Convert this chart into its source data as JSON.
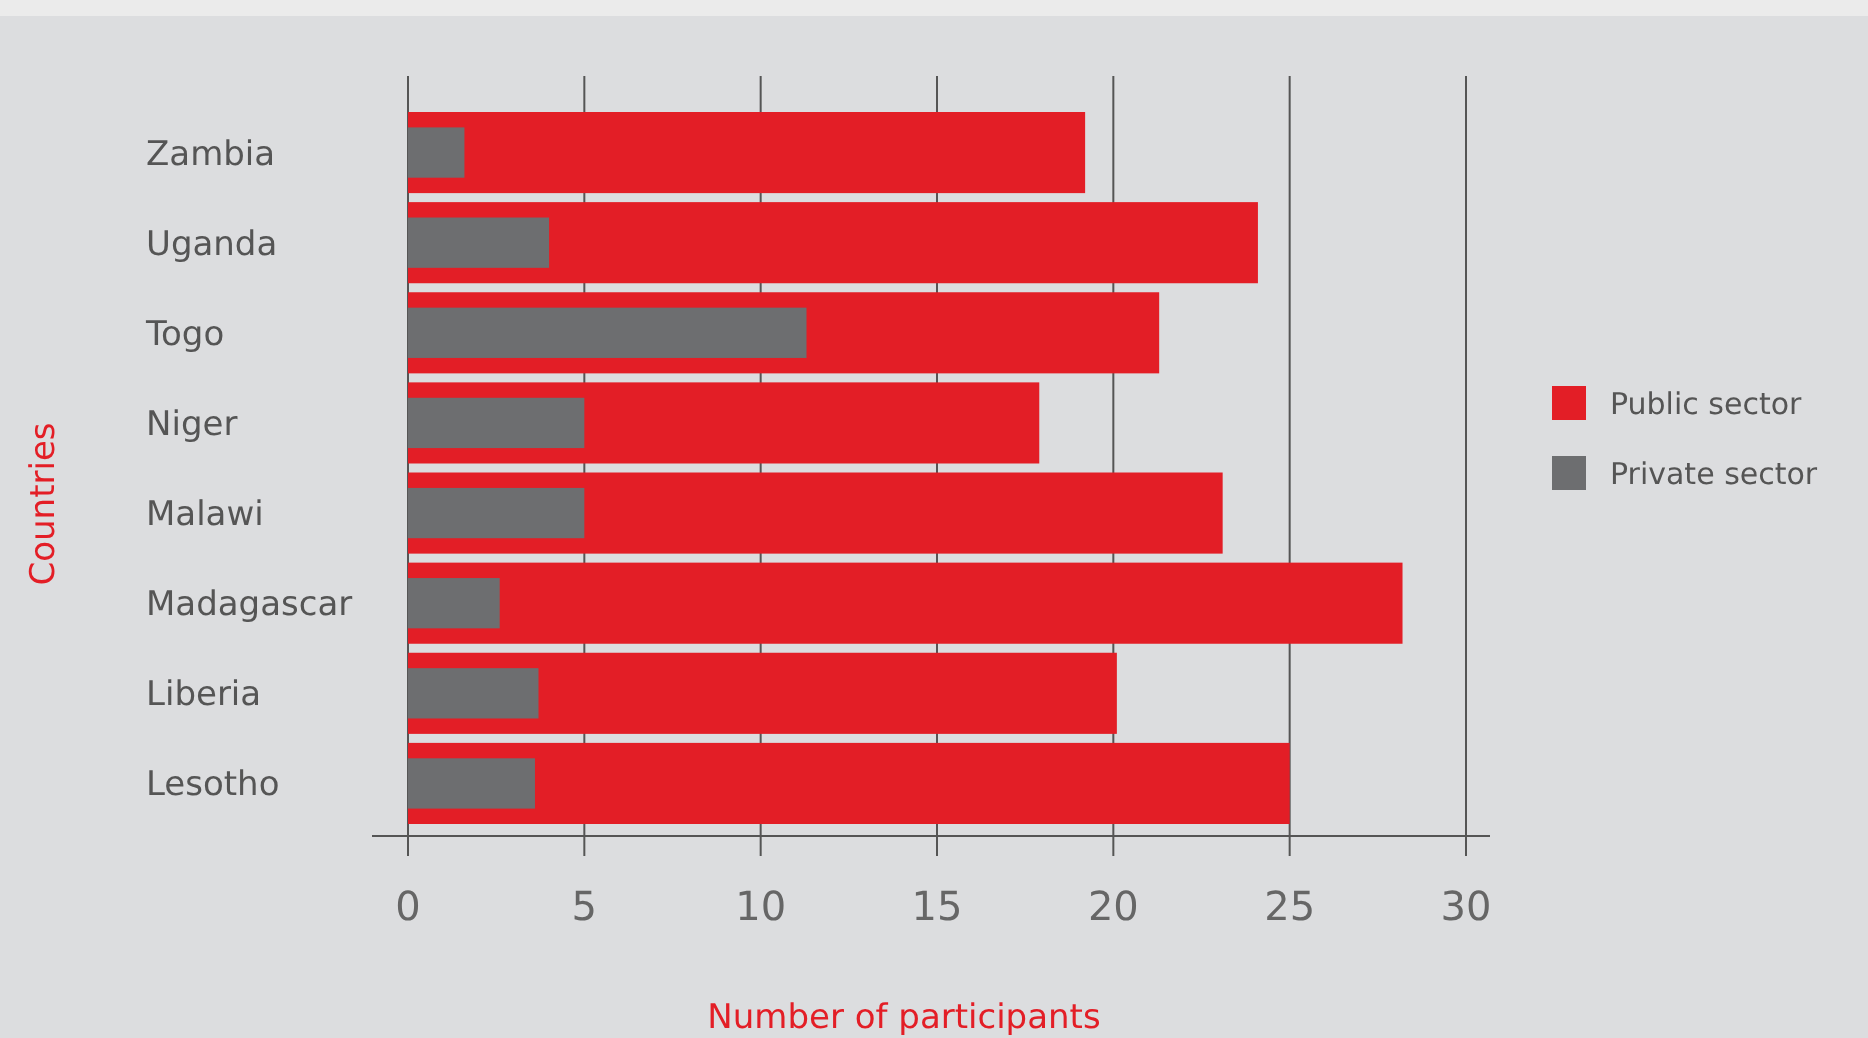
{
  "chart_data": {
    "type": "bar",
    "orientation": "horizontal",
    "xlabel": "Number of participants",
    "ylabel": "Countries",
    "categories": [
      "Zambia",
      "Uganda",
      "Togo",
      "Niger",
      "Malawi",
      "Madagascar",
      "Liberia",
      "Lesotho"
    ],
    "series": [
      {
        "name": "Public sector",
        "color": "#e31e26",
        "values": [
          19.2,
          24.1,
          21.3,
          17.9,
          23.1,
          28.2,
          20.1,
          25
        ]
      },
      {
        "name": "Private sector",
        "color": "#6d6e70",
        "values": [
          1.6,
          4,
          11.3,
          5,
          5,
          2.6,
          3.7,
          3.6
        ]
      }
    ],
    "xlim": [
      0,
      30
    ],
    "xticks": [
      0,
      5,
      10,
      15,
      20,
      25,
      30
    ],
    "grid": "x",
    "legend": "right"
  }
}
